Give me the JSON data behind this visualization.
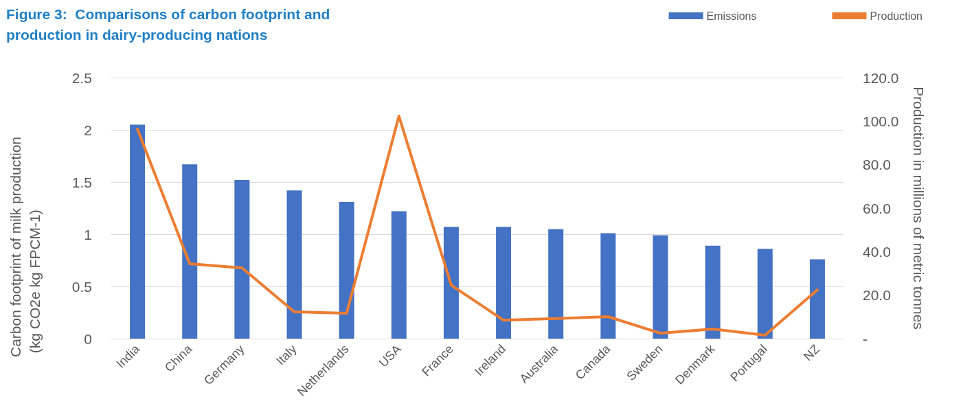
{
  "chart_data": {
    "type": "bar",
    "title": "Figure 3:  Comparisons of carbon footprint and production in dairy-producing nations",
    "ylabel": "Carbon footprint of milk production (kg CO2e kg FPCM-1)",
    "y2label": "Production in millions of metric tonnes",
    "categories": [
      "India",
      "China",
      "Germany",
      "Italy",
      "Netherlands",
      "USA",
      "France",
      "Ireland",
      "Australia",
      "Canada",
      "Sweden",
      "Denmark",
      "Portugal",
      "NZ"
    ],
    "series": [
      {
        "name": "Emissions",
        "color": "#4472c4",
        "values": [
          2.05,
          1.67,
          1.52,
          1.42,
          1.31,
          1.22,
          1.07,
          1.07,
          1.05,
          1.01,
          0.99,
          0.89,
          0.86,
          0.76
        ]
      },
      {
        "name": "Production",
        "type": "line",
        "axis": "y2",
        "color": "#ed7d31",
        "values": [
          96.3,
          34.4,
          32.5,
          12.3,
          11.7,
          102.3,
          24.6,
          8.5,
          9.2,
          10.1,
          2.5,
          4.4,
          1.6,
          22.4
        ]
      }
    ],
    "ylim": [
      0,
      2.5
    ],
    "yticks": [
      0,
      0.5,
      1,
      1.5,
      2,
      2.5
    ],
    "y2lim": [
      0,
      120
    ],
    "y2ticks": [
      {
        "value": 0,
        "label": "-"
      },
      {
        "value": 20,
        "label": "20.0"
      },
      {
        "value": 40,
        "label": "40.0"
      },
      {
        "value": 60,
        "label": "60.0"
      },
      {
        "value": 80,
        "label": "80.0"
      },
      {
        "value": 100,
        "label": "100.0"
      },
      {
        "value": 120,
        "label": "120.0"
      }
    ],
    "grid": "y",
    "legend": "top right"
  }
}
